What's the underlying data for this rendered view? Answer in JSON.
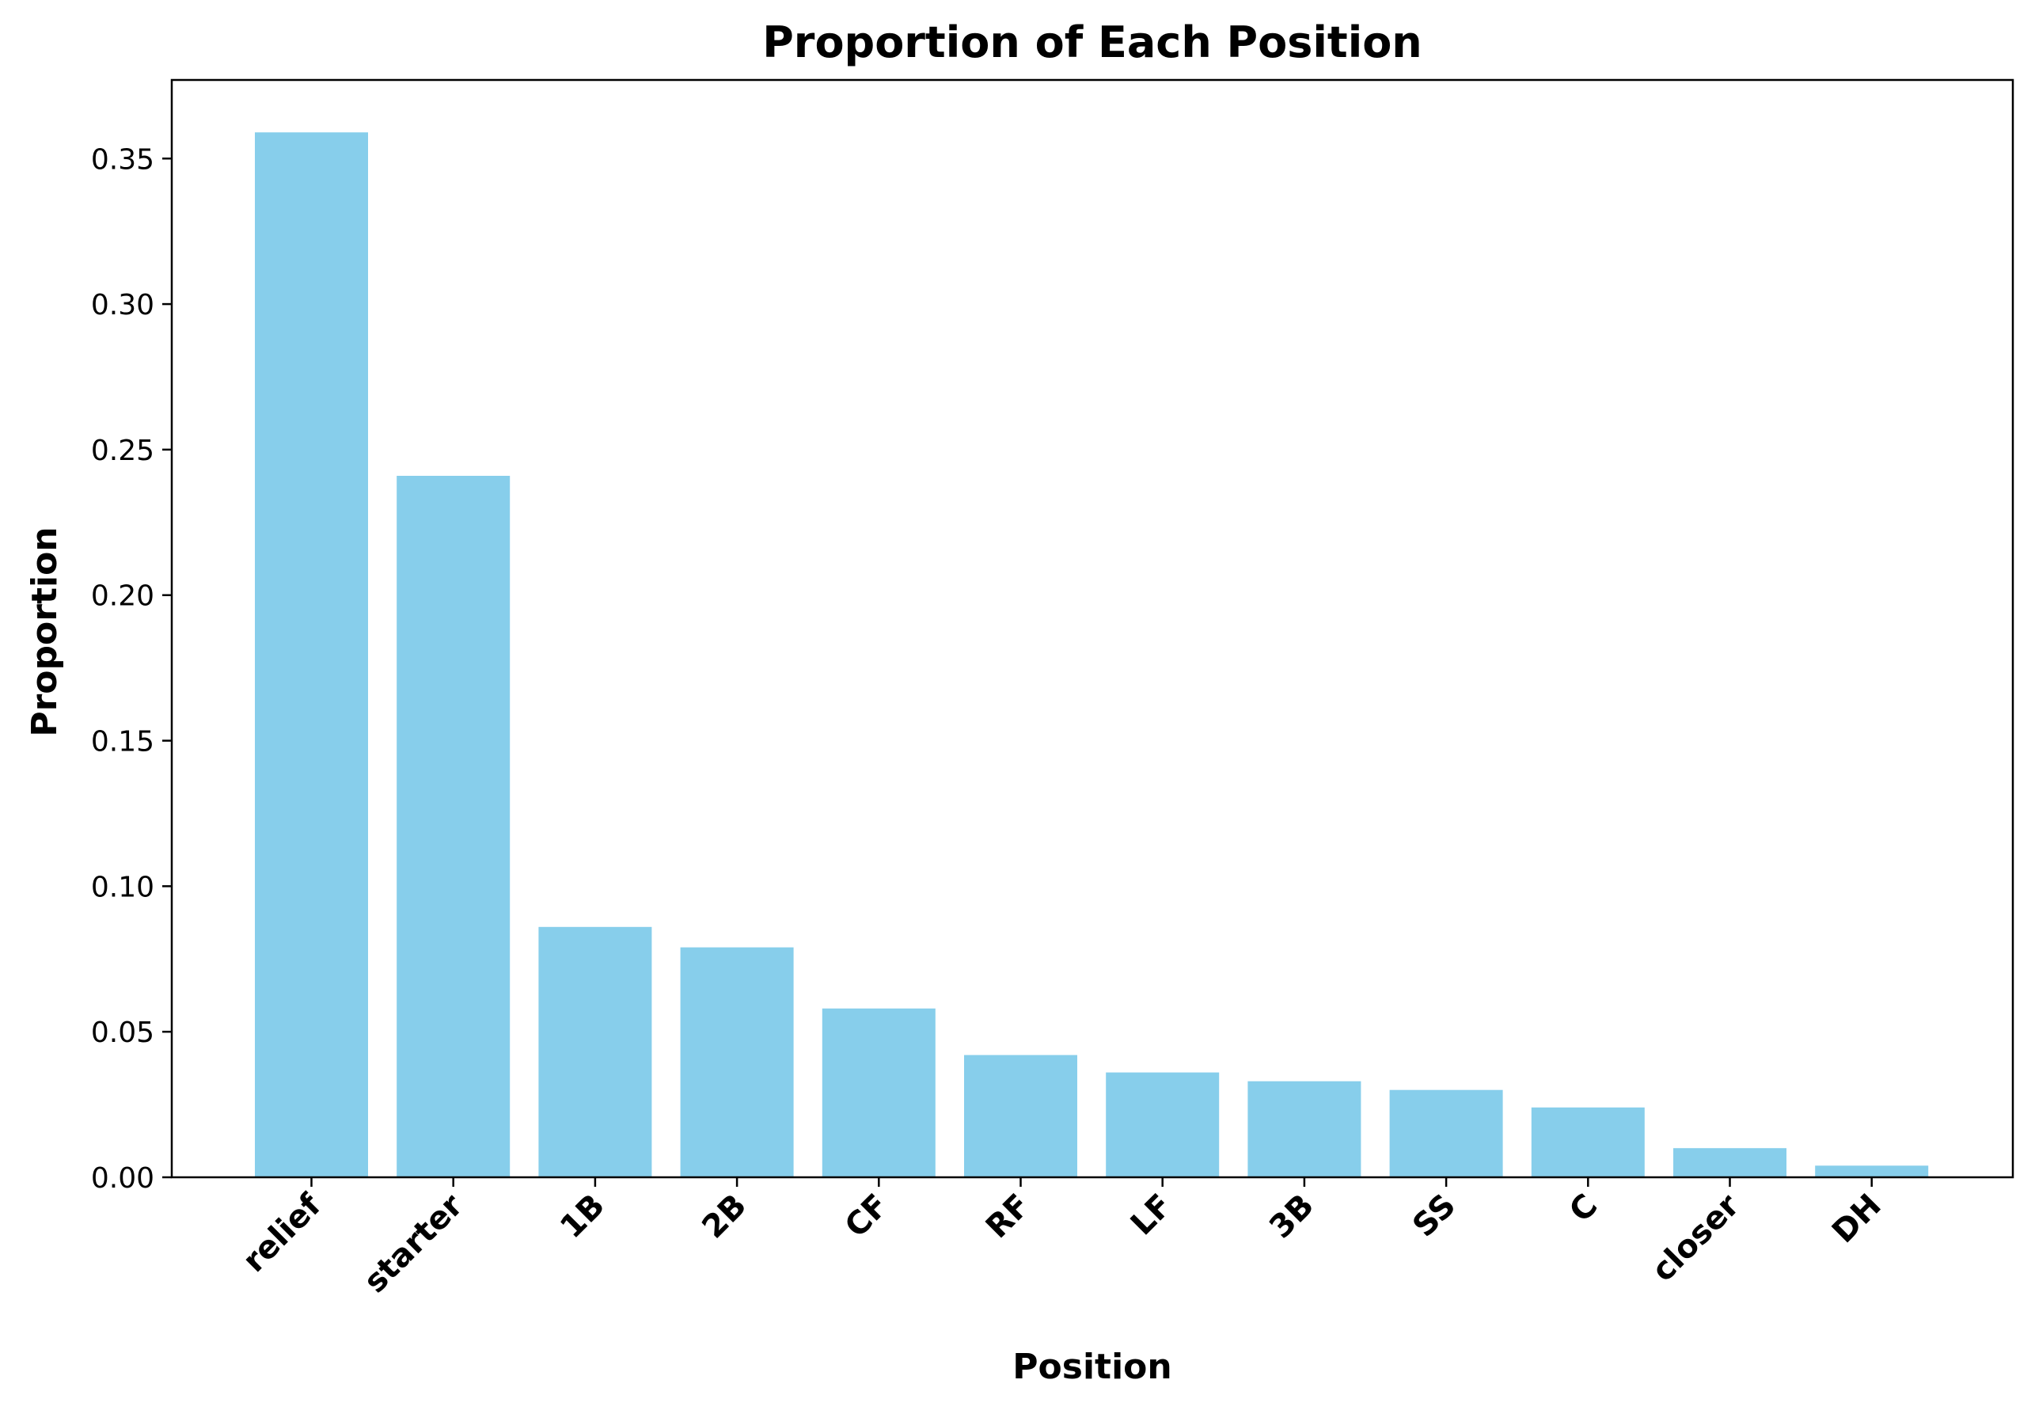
{
  "chart_data": {
    "type": "bar",
    "title": "Proportion of Each Position",
    "xlabel": "Position",
    "ylabel": "Proportion",
    "categories": [
      "relief",
      "starter",
      "1B",
      "2B",
      "CF",
      "RF",
      "LF",
      "3B",
      "SS",
      "C",
      "closer",
      "DH"
    ],
    "values": [
      0.359,
      0.241,
      0.086,
      0.079,
      0.058,
      0.042,
      0.036,
      0.033,
      0.03,
      0.024,
      0.01,
      0.004
    ],
    "ylim": [
      0,
      0.377
    ],
    "yticks": [
      "0.00",
      "0.05",
      "0.10",
      "0.15",
      "0.20",
      "0.25",
      "0.30",
      "0.35"
    ],
    "bar_color": "#87CEEB",
    "grid": false,
    "legend": false
  }
}
